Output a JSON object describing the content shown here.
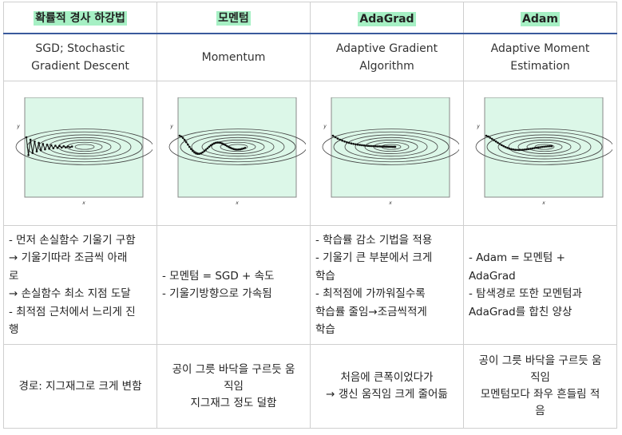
{
  "columns": [
    {
      "header": "확률적 경사 하강법",
      "name": [
        "SGD; Stochastic",
        "Gradient Descent"
      ],
      "desc": [
        "- 먼저 손실함수 기울기 구함",
        "  → 기울기따라 조금씩 아래",
        "로",
        "  → 손실함수 최소 지점 도달",
        "- 최적점 근처에서 느리게 진",
        "행"
      ],
      "path": [
        "경로: 지그재그로 크게 변함"
      ]
    },
    {
      "header": "모멘텀",
      "name": [
        "Momentum"
      ],
      "desc": [
        "- 모멘텀 = SGD + 속도",
        "- 기울기방향으로 가속됨"
      ],
      "path": [
        "공이 그릇 바닥을 구르듯 움",
        "직임",
        "지그재그 정도 덜함"
      ]
    },
    {
      "header": "AdaGrad",
      "name": [
        "Adaptive Gradient",
        "Algorithm"
      ],
      "desc": [
        "- 학습률 감소 기법을 적용",
        "- 기울기 큰 부분에서 크게",
        "학습",
        "- 최적점에 가까워질수록",
        "  학습률 줄임→조금씩적게",
        "학습"
      ],
      "path": [
        "처음에 큰폭이었다가",
        "→ 갱신 움직임 크게 줄어듦"
      ]
    },
    {
      "header": "Adam",
      "name": [
        "Adaptive Moment",
        "Estimation"
      ],
      "desc": [
        "- Adam = 모멘텀 +",
        "AdaGrad",
        "- 탐색경로 또한 모멘텀과",
        "  AdaGrad를 합친 양상"
      ],
      "path": [
        "공이 그릇 바닥을 구르듯 움",
        "직임",
        "모멘텀모다 좌우 흔들림 적",
        "음"
      ]
    }
  ],
  "plot_axis_labels": {
    "x": "x",
    "y": "y"
  },
  "colors": {
    "header_highlight": "#a6f0c4",
    "plot_background": "#dcf7e8",
    "header_rule": "#3a5a9c"
  }
}
